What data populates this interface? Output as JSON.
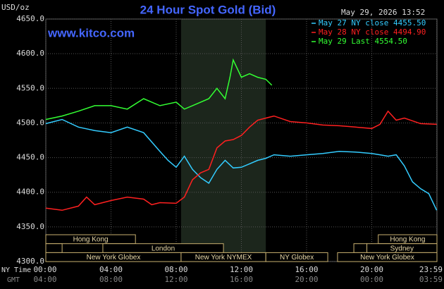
{
  "chart_data": {
    "type": "line",
    "title": "24 Hour Spot Gold (Bid)",
    "y_label": "USD/oz",
    "watermark": "www.kitco.com",
    "timestamp": "May 29, 2026 13:52",
    "ylim": [
      4300,
      4650
    ],
    "yticks": [
      {
        "value": 4300,
        "label": "4300.0"
      },
      {
        "value": 4350,
        "label": "4350.0"
      },
      {
        "value": 4400,
        "label": "4400.0"
      },
      {
        "value": 4450,
        "label": "4450.0"
      },
      {
        "value": 4500,
        "label": "4500.0"
      },
      {
        "value": 4550,
        "label": "4550.0"
      },
      {
        "value": 4600,
        "label": "4600.0"
      },
      {
        "value": 4650,
        "label": "4650.0"
      }
    ],
    "xlim": [
      0,
      24
    ],
    "x_row_names": [
      "NY Time",
      "GMT"
    ],
    "xticks": [
      {
        "value": 0,
        "label": "00:00"
      },
      {
        "value": 4,
        "label": "04:00"
      },
      {
        "value": 8,
        "label": "08:00"
      },
      {
        "value": 12,
        "label": "12:00"
      },
      {
        "value": 16,
        "label": "16:00"
      },
      {
        "value": 20,
        "label": "20:00"
      },
      {
        "value": 23.983,
        "label": "23:59"
      }
    ],
    "xticks_gmt": [
      "04:00",
      "08:00",
      "12:00",
      "16:00",
      "20:00",
      "00:00",
      "03:59"
    ],
    "grid": true,
    "series": [
      {
        "name": "May 27 NY close 4455.50",
        "color": "#33ccff",
        "x": [
          0,
          1,
          2,
          3,
          4,
          5,
          6,
          7,
          7.5,
          8,
          8.5,
          9,
          9.5,
          10,
          10.5,
          11,
          11.5,
          12,
          12.5,
          13,
          13.5,
          14,
          15,
          16,
          17,
          18,
          19,
          20,
          20.5,
          21,
          21.5,
          22,
          22.5,
          23,
          23.5,
          23.983
        ],
        "values": [
          4499,
          4505,
          4494,
          4489,
          4486,
          4494,
          4486,
          4459,
          4446,
          4436,
          4452,
          4433,
          4421,
          4413,
          4433,
          4446,
          4435,
          4436,
          4441,
          4446,
          4449,
          4454,
          4452,
          4454,
          4456,
          4459,
          4458,
          4456,
          4454,
          4452,
          4454,
          4438,
          4415,
          4405,
          4398,
          4374
        ]
      },
      {
        "name": "May 28 NY close 4494.90",
        "color": "#ff2020",
        "x": [
          0,
          1,
          2,
          2.5,
          3,
          4,
          5,
          6,
          6.5,
          7,
          8,
          8.5,
          9,
          9.5,
          10,
          10.5,
          11,
          11.5,
          12,
          12.5,
          13,
          14,
          15,
          16,
          17,
          18,
          19,
          20,
          20.5,
          21,
          21.5,
          22,
          23,
          23.983
        ],
        "values": [
          4377,
          4374,
          4380,
          4393,
          4382,
          4388,
          4393,
          4390,
          4382,
          4385,
          4384,
          4393,
          4418,
          4428,
          4433,
          4464,
          4474,
          4476,
          4482,
          4494,
          4504,
          4510,
          4502,
          4500,
          4497,
          4496,
          4494,
          4492,
          4498,
          4517,
          4504,
          4507,
          4499,
          4498
        ]
      },
      {
        "name": "May 29 Last 4554.50",
        "color": "#33ff33",
        "x": [
          0,
          1,
          2,
          3,
          4,
          5,
          6,
          6.5,
          7,
          8,
          8.5,
          9,
          10,
          10.5,
          11,
          11.3,
          11.5,
          12,
          12.5,
          13,
          13.5,
          13.87
        ],
        "values": [
          4505,
          4510,
          4517,
          4525,
          4525,
          4520,
          4535,
          4530,
          4525,
          4530,
          4520,
          4525,
          4535,
          4550,
          4535,
          4566,
          4591,
          4566,
          4571,
          4566,
          4563,
          4554.5
        ]
      }
    ],
    "sessions": [
      {
        "label": "Hong Kong",
        "start": 0,
        "end": 5.5,
        "row": 0
      },
      {
        "label": null,
        "start": 0,
        "end": 1,
        "row": 1
      },
      {
        "label": "London",
        "start": 3.5,
        "end": 10.9,
        "row": 1
      },
      {
        "label": "New York Globex",
        "start": 0,
        "end": 8.3,
        "row": 2
      },
      {
        "label": "New York NYMEX",
        "start": 8.3,
        "end": 13.5,
        "row": 2,
        "highlight": true
      },
      {
        "label": "NY Globex",
        "start": 13.5,
        "end": 17.3,
        "row": 2
      },
      {
        "label": "Hong Kong",
        "start": 20.4,
        "end": 24,
        "row": 0
      },
      {
        "label": null,
        "start": 18.9,
        "end": 19.7,
        "row": 1
      },
      {
        "label": "Sydney",
        "start": 19.7,
        "end": 24,
        "row": 1
      },
      {
        "label": "New York Globex",
        "start": 17.9,
        "end": 24,
        "row": 2
      }
    ]
  }
}
